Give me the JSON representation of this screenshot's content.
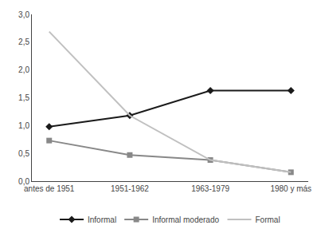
{
  "chart_data": {
    "type": "line",
    "categories": [
      "antes de 1951",
      "1951-1962",
      "1963-1979",
      "1980 y más"
    ],
    "series": [
      {
        "name": "Informal",
        "color": "#1a1a1a",
        "marker": "diamond",
        "values": [
          0.98,
          1.18,
          1.63,
          1.63
        ]
      },
      {
        "name": "Informal moderado",
        "color": "#888888",
        "marker": "square",
        "values": [
          0.73,
          0.47,
          0.38,
          0.16
        ]
      },
      {
        "name": "Formal",
        "color": "#c0c0c0",
        "values": [
          2.69,
          1.18,
          0.38,
          0.16
        ]
      }
    ],
    "ylim": [
      0,
      3.0
    ],
    "yticks": [
      {
        "value": 0.0,
        "label": "0,0"
      },
      {
        "value": 0.5,
        "label": "0,5"
      },
      {
        "value": 1.0,
        "label": "1,0"
      },
      {
        "value": 1.5,
        "label": "1,5"
      },
      {
        "value": 2.0,
        "label": "2,0"
      },
      {
        "value": 2.5,
        "label": "2,5"
      },
      {
        "value": 3.0,
        "label": "3,0"
      }
    ],
    "grid": false,
    "legend": "bottom"
  }
}
